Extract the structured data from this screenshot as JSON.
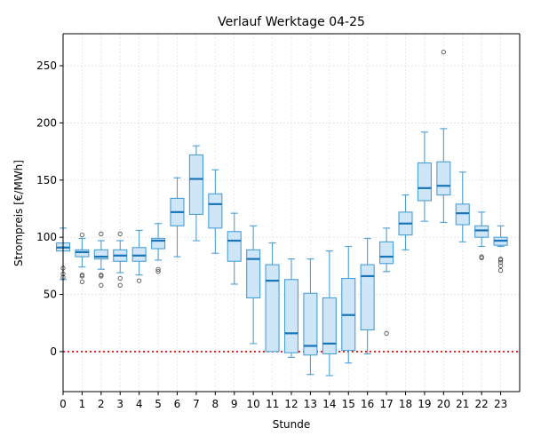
{
  "chart_data": {
    "type": "box",
    "title": "Verlauf Werktage 04-25",
    "xlabel": "Stunde",
    "ylabel": "Strompreis [€/MWh]",
    "ylim": [
      -35,
      278
    ],
    "xlim": [
      0,
      24
    ],
    "grid": true,
    "reference_line": {
      "y": 0,
      "style": "dotted",
      "color": "#e31a1c"
    },
    "colors": {
      "box_fill": "#cfe6f8",
      "box_edge": "#4a9fd6",
      "median": "#1874b8",
      "whisker": "#4a9fd6",
      "flier": "#555555"
    },
    "x_ticks": [
      "0",
      "1",
      "2",
      "3",
      "4",
      "5",
      "6",
      "7",
      "8",
      "9",
      "10",
      "11",
      "12",
      "13",
      "14",
      "15",
      "16",
      "17",
      "18",
      "19",
      "20",
      "21",
      "22",
      "23"
    ],
    "y_ticks": [
      0,
      50,
      100,
      150,
      200,
      250
    ],
    "boxes": [
      {
        "hour": 0,
        "whislo": 63,
        "q1": 88,
        "median": 91,
        "q3": 95,
        "whishi": 108,
        "fliers": [
          65,
          68,
          73
        ]
      },
      {
        "hour": 1,
        "whislo": 74,
        "q1": 83,
        "median": 87,
        "q3": 89,
        "whishi": 99,
        "fliers": [
          61,
          66,
          67,
          102
        ]
      },
      {
        "hour": 2,
        "whislo": 72,
        "q1": 81,
        "median": 83,
        "q3": 89,
        "whishi": 97,
        "fliers": [
          58,
          66,
          67,
          103
        ]
      },
      {
        "hour": 3,
        "whislo": 69,
        "q1": 79,
        "median": 84,
        "q3": 89,
        "whishi": 97,
        "fliers": [
          58,
          64,
          103
        ]
      },
      {
        "hour": 4,
        "whislo": 67,
        "q1": 79,
        "median": 84,
        "q3": 91,
        "whishi": 106,
        "fliers": [
          62
        ]
      },
      {
        "hour": 5,
        "whislo": 80,
        "q1": 90,
        "median": 97,
        "q3": 99,
        "whishi": 112,
        "fliers": [
          70,
          72
        ]
      },
      {
        "hour": 6,
        "whislo": 83,
        "q1": 110,
        "median": 122,
        "q3": 134,
        "whishi": 152,
        "fliers": []
      },
      {
        "hour": 7,
        "whislo": 97,
        "q1": 120,
        "median": 151,
        "q3": 172,
        "whishi": 180,
        "fliers": []
      },
      {
        "hour": 8,
        "whislo": 86,
        "q1": 108,
        "median": 129,
        "q3": 138,
        "whishi": 159,
        "fliers": []
      },
      {
        "hour": 9,
        "whislo": 59,
        "q1": 79,
        "median": 97,
        "q3": 105,
        "whishi": 121,
        "fliers": []
      },
      {
        "hour": 10,
        "whislo": 7,
        "q1": 47,
        "median": 81,
        "q3": 89,
        "whishi": 110,
        "fliers": []
      },
      {
        "hour": 11,
        "whislo": 0,
        "q1": 0,
        "median": 62,
        "q3": 76,
        "whishi": 95,
        "fliers": []
      },
      {
        "hour": 12,
        "whislo": -5,
        "q1": -1,
        "median": 16,
        "q3": 63,
        "whishi": 81,
        "fliers": []
      },
      {
        "hour": 13,
        "whislo": -20,
        "q1": -3,
        "median": 5,
        "q3": 51,
        "whishi": 81,
        "fliers": []
      },
      {
        "hour": 14,
        "whislo": -21,
        "q1": -2,
        "median": 7,
        "q3": 47,
        "whishi": 88,
        "fliers": []
      },
      {
        "hour": 15,
        "whislo": -10,
        "q1": 1,
        "median": 32,
        "q3": 64,
        "whishi": 92,
        "fliers": []
      },
      {
        "hour": 16,
        "whislo": -2,
        "q1": 19,
        "median": 66,
        "q3": 76,
        "whishi": 99,
        "fliers": []
      },
      {
        "hour": 17,
        "whislo": 70,
        "q1": 77,
        "median": 83,
        "q3": 96,
        "whishi": 108,
        "fliers": [
          16
        ]
      },
      {
        "hour": 18,
        "whislo": 89,
        "q1": 102,
        "median": 112,
        "q3": 122,
        "whishi": 137,
        "fliers": []
      },
      {
        "hour": 19,
        "whislo": 114,
        "q1": 132,
        "median": 143,
        "q3": 165,
        "whishi": 192,
        "fliers": []
      },
      {
        "hour": 20,
        "whislo": 113,
        "q1": 137,
        "median": 145,
        "q3": 166,
        "whishi": 195,
        "fliers": [
          262
        ]
      },
      {
        "hour": 21,
        "whislo": 96,
        "q1": 111,
        "median": 121,
        "q3": 129,
        "whishi": 157,
        "fliers": []
      },
      {
        "hour": 22,
        "whislo": 92,
        "q1": 100,
        "median": 106,
        "q3": 110,
        "whishi": 122,
        "fliers": [
          82,
          83
        ]
      },
      {
        "hour": 23,
        "whislo": 92,
        "q1": 93,
        "median": 97,
        "q3": 100,
        "whishi": 110,
        "fliers": [
          71,
          75,
          78,
          80,
          81
        ]
      }
    ]
  }
}
